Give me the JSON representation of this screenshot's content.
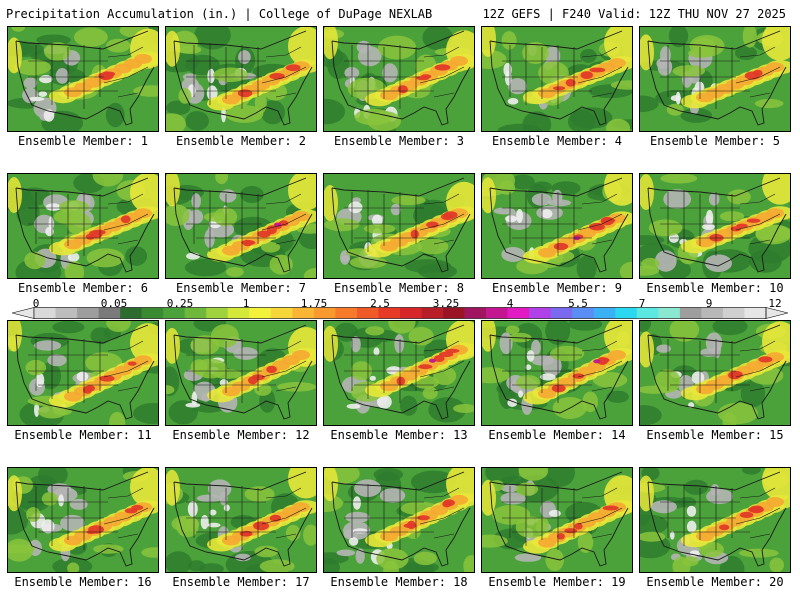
{
  "header": {
    "title": "Precipitation Accumulation (in.) | College of DuPage NEXLAB",
    "run_info": "12Z GEFS | F240 Valid: 12Z THU NOV 27 2025"
  },
  "panels": [
    {
      "label": "Ensemble Member: 1",
      "seed": 11,
      "band": [
        0.48,
        0.55
      ],
      "red": 0.55
    },
    {
      "label": "Ensemble Member: 2",
      "seed": 23,
      "band": [
        0.55,
        0.62
      ],
      "red": 0.35
    },
    {
      "label": "Ensemble Member: 3",
      "seed": 37,
      "band": [
        0.5,
        0.58
      ],
      "red": 0.45
    },
    {
      "label": "Ensemble Member: 4",
      "seed": 41,
      "band": [
        0.52,
        0.56
      ],
      "red": 0.5
    },
    {
      "label": "Ensemble Member: 5",
      "seed": 53,
      "band": [
        0.56,
        0.6
      ],
      "red": 0.3
    },
    {
      "label": "Ensemble Member: 6",
      "seed": 61,
      "band": [
        0.55,
        0.6
      ],
      "red": 0.55
    },
    {
      "label": "Ensemble Member: 7",
      "seed": 73,
      "band": [
        0.58,
        0.66
      ],
      "red": 0.75
    },
    {
      "label": "Ensemble Member: 8",
      "seed": 83,
      "band": [
        0.55,
        0.62
      ],
      "red": 0.55
    },
    {
      "label": "Ensemble Member: 9",
      "seed": 97,
      "band": [
        0.6,
        0.68
      ],
      "red": 0.7
    },
    {
      "label": "Ensemble Member: 10",
      "seed": 103,
      "band": [
        0.55,
        0.58
      ],
      "red": 0.45
    },
    {
      "label": "Ensemble Member: 11",
      "seed": 113,
      "band": [
        0.55,
        0.65
      ],
      "red": 0.5
    },
    {
      "label": "Ensemble Member: 12",
      "seed": 127,
      "band": [
        0.5,
        0.6
      ],
      "red": 0.35
    },
    {
      "label": "Ensemble Member: 13",
      "seed": 131,
      "band": [
        0.45,
        0.55
      ],
      "red": 0.65
    },
    {
      "label": "Ensemble Member: 14",
      "seed": 149,
      "band": [
        0.5,
        0.62
      ],
      "red": 0.65
    },
    {
      "label": "Ensemble Member: 15",
      "seed": 157,
      "band": [
        0.52,
        0.58
      ],
      "red": 0.35
    },
    {
      "label": "Ensemble Member: 16",
      "seed": 163,
      "band": [
        0.55,
        0.62
      ],
      "red": 0.45
    },
    {
      "label": "Ensemble Member: 17",
      "seed": 173,
      "band": [
        0.55,
        0.62
      ],
      "red": 0.45
    },
    {
      "label": "Ensemble Member: 18",
      "seed": 181,
      "band": [
        0.48,
        0.58
      ],
      "red": 0.6
    },
    {
      "label": "Ensemble Member: 19",
      "seed": 191,
      "band": [
        0.55,
        0.64
      ],
      "red": 0.5
    },
    {
      "label": "Ensemble Member: 20",
      "seed": 199,
      "band": [
        0.5,
        0.58
      ],
      "red": 0.5
    }
  ],
  "colorbar": {
    "tick_labels": [
      "0",
      "0.05",
      "0.25",
      "1",
      "1.75",
      "2.5",
      "3.25",
      "4",
      "5.5",
      "7",
      "9",
      "12"
    ],
    "colors": [
      "#d9d9d9",
      "#bdbdbd",
      "#9e9e9e",
      "#7a7a7a",
      "#2e6b2e",
      "#3a8a32",
      "#4ca23a",
      "#6fb83c",
      "#9fd23c",
      "#d4e83a",
      "#f2f23a",
      "#f7d63a",
      "#f9b533",
      "#f99a2e",
      "#f67a2a",
      "#ef5a28",
      "#e63a27",
      "#d6262a",
      "#b81e28",
      "#9a1426",
      "#a01460",
      "#c41690",
      "#e21ac4",
      "#b040e8",
      "#7a6aef",
      "#5a8ef5",
      "#3ab0f5",
      "#2ad8f0",
      "#5ae8e0",
      "#8ae8d0",
      "#9e9e9e",
      "#b8b8b8",
      "#d0d0d0",
      "#e6e6e6"
    ]
  },
  "map_colors": {
    "green_dark": "#2e7d2e",
    "green_mid": "#4ca23a",
    "green_light": "#8ac43c",
    "yellow": "#e8e83a",
    "orange": "#f5a832",
    "red": "#e03a28",
    "magenta": "#c01690",
    "gray": "#b5b5b5",
    "white": "#eeeeee"
  }
}
